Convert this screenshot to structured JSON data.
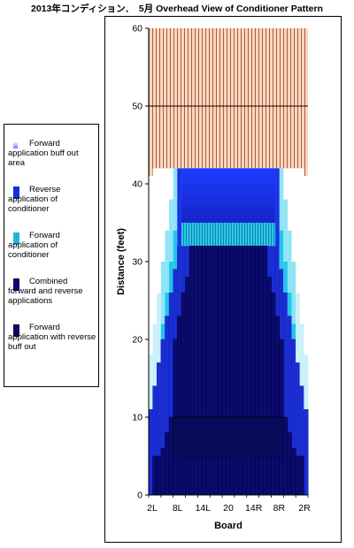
{
  "chart_data": {
    "type": "area",
    "title": "2013年コンディション．　5月 Overhead View of Conditioner Pattern",
    "xlabel": "Board",
    "ylabel": "Distance (feet)",
    "ylim": [
      0,
      60
    ],
    "yticks": [
      0,
      10,
      20,
      30,
      40,
      50,
      60
    ],
    "x_tick_labels": [
      "2L",
      "8L",
      "14L",
      "20",
      "14R",
      "8R",
      "2R"
    ],
    "boards": 39,
    "legend_position": "left",
    "gridlines": [
      50
    ],
    "series": [
      {
        "name": "Forward application buff out area",
        "color": "#6b7fff"
      },
      {
        "name": "Reverse application of conditioner",
        "color": "#1a2dd6"
      },
      {
        "name": "Forward application of conditioner",
        "color": "#29c3e6"
      },
      {
        "name": "Combined forward and reverse applications",
        "color": "#0b0b6e"
      },
      {
        "name": "Forward application with reverse buff out",
        "color": "#0a0a5a"
      }
    ],
    "regions": {
      "oil_pattern_length": 41,
      "oil_full_width_top": 42,
      "oil_inner_top": 35,
      "forward_band": [
        32,
        35
      ],
      "combined_center_top": 32,
      "reverse_buff_band": [
        5,
        10
      ],
      "lane_end": 60
    }
  },
  "legend": {
    "items": [
      {
        "line1": "Forward",
        "rest": "application  buff out area"
      },
      {
        "line1": "Reverse",
        "rest": "application  of conditioner"
      },
      {
        "line1": "Forward",
        "rest": "application  of conditioner"
      },
      {
        "line1": "Combined",
        "rest": "forward and reverse applications"
      },
      {
        "line1": "Forward",
        "rest": "application  with reverse buff out"
      }
    ]
  }
}
